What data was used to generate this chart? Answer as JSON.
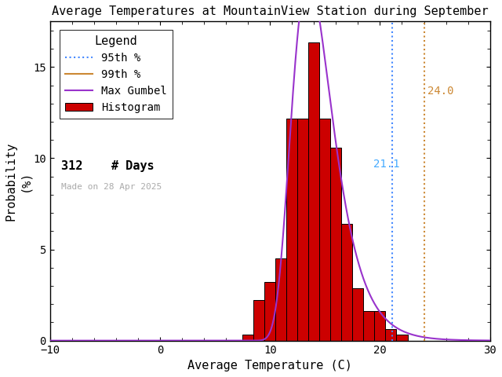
{
  "title": "Average Temperatures at MountainView Station during September",
  "xlabel": "Average Temperature (C)",
  "ylabel": "Probability\n(%)",
  "xlim": [
    -10,
    30
  ],
  "ylim": [
    0,
    17.5
  ],
  "xticks": [
    -10,
    0,
    10,
    20,
    30
  ],
  "yticks": [
    0,
    5,
    10,
    15
  ],
  "bar_left_edges": [
    7.5,
    8.5,
    9.5,
    10.5,
    11.5,
    12.5,
    13.5,
    14.5,
    15.5,
    16.5,
    17.5,
    18.5,
    19.5,
    20.5,
    21.5,
    22.5,
    23.5,
    24.5,
    25.5
  ],
  "bar_heights": [
    0.32,
    2.24,
    3.21,
    4.49,
    12.18,
    12.18,
    16.35,
    12.18,
    10.58,
    6.41,
    2.88,
    1.6,
    1.6,
    0.64,
    0.32,
    0.0,
    0.0,
    0.0,
    0.0
  ],
  "bar_color": "#cc0000",
  "bar_edgecolor": "#000000",
  "percentile_95": 21.1,
  "percentile_99": 24.0,
  "percentile_95_color": "#4488ff",
  "percentile_99_color": "#cc8833",
  "percentile_95_label_color": "#44aaff",
  "percentile_99_label_color": "#cc8833",
  "n_days": 312,
  "made_on": "Made on 28 Apr 2025",
  "background_color": "#ffffff",
  "plot_bg_color": "#ffffff",
  "legend_title": "Legend",
  "gumbel_mu": 13.5,
  "gumbel_beta": 1.85,
  "gumbel_color": "#9933cc",
  "title_fontsize": 11,
  "axis_fontsize": 11,
  "tick_fontsize": 10,
  "legend_fontsize": 10
}
